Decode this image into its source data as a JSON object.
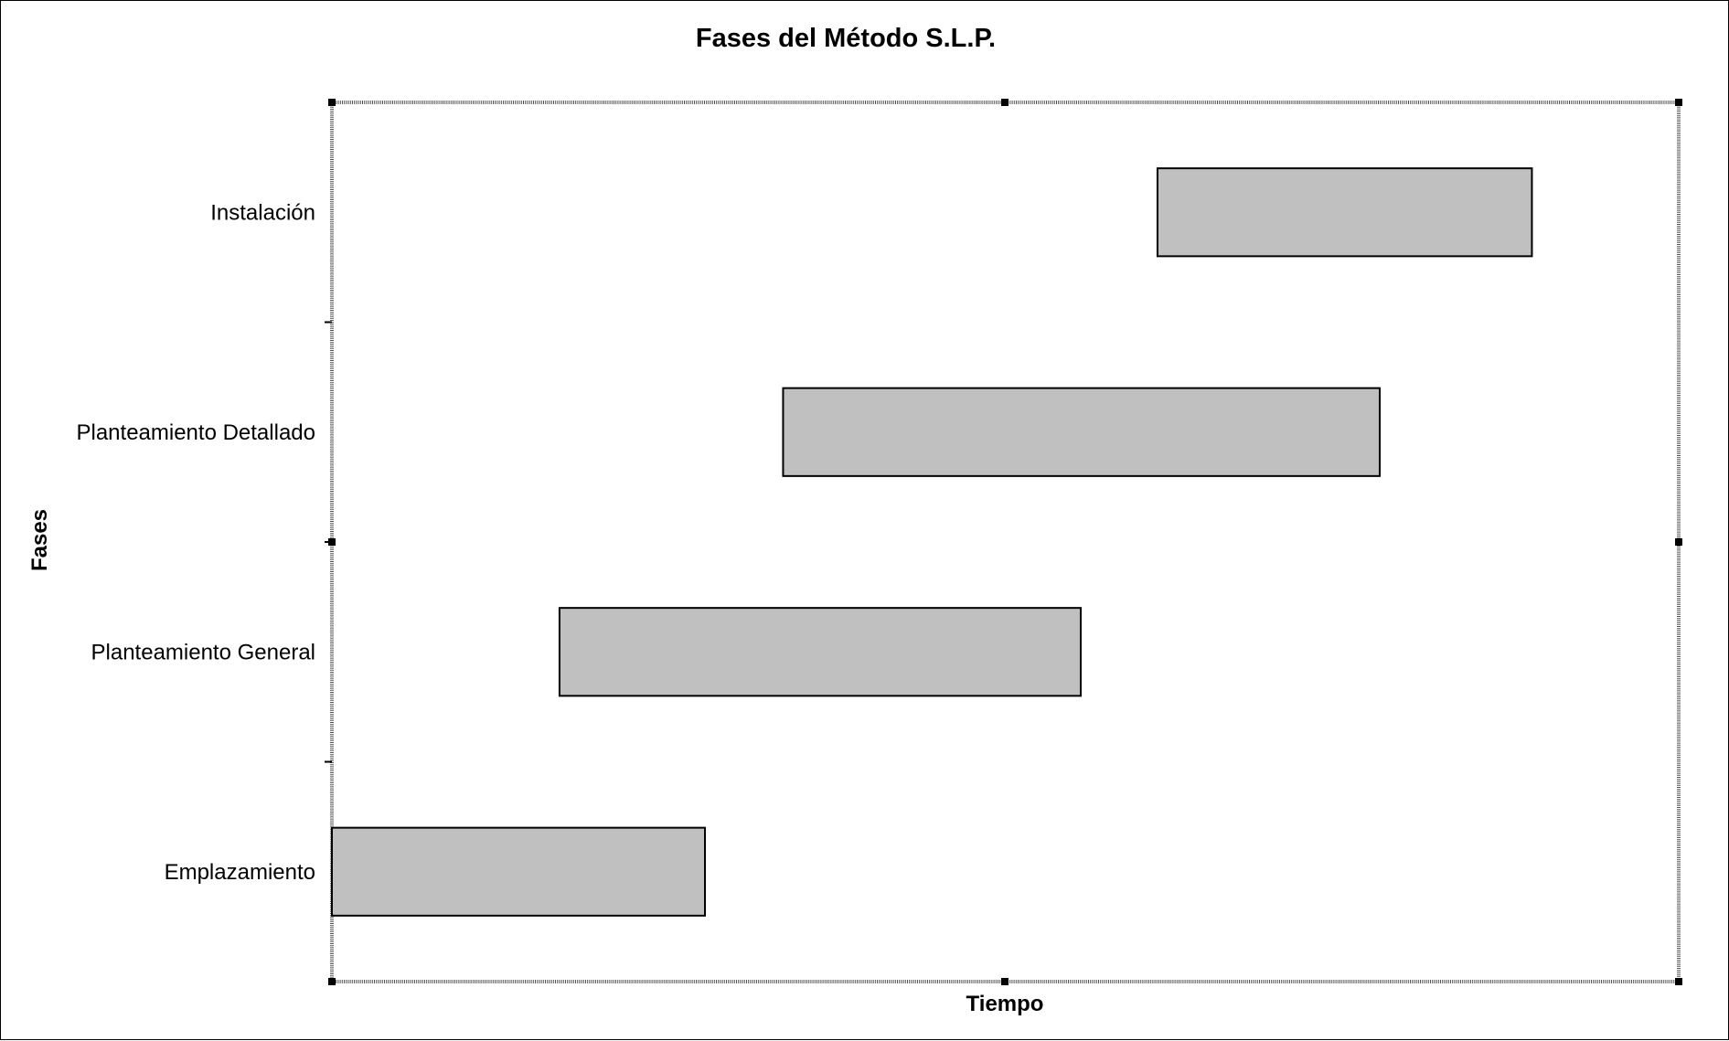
{
  "chart_data": {
    "type": "bar",
    "orientation": "horizontal-gantt",
    "title": "Fases del Método S.L.P.",
    "xlabel": "Tiempo",
    "ylabel": "Fases",
    "xlim": [
      0,
      100
    ],
    "categories": [
      "Emplazamiento",
      "Planteamiento General",
      "Planteamiento Detallado",
      "Instalación"
    ],
    "series": [
      {
        "bars": [
          {
            "category": "Emplazamiento",
            "start": 0,
            "end": 27.7
          },
          {
            "category": "Planteamiento General",
            "start": 16.9,
            "end": 55.6
          },
          {
            "category": "Planteamiento Detallado",
            "start": 33.5,
            "end": 77.8
          },
          {
            "category": "Instalación",
            "start": 61.3,
            "end": 89.1
          }
        ]
      }
    ],
    "bar_fill": "#c0c0c0",
    "bar_stroke": "#000000",
    "grid": false,
    "legend": false
  }
}
